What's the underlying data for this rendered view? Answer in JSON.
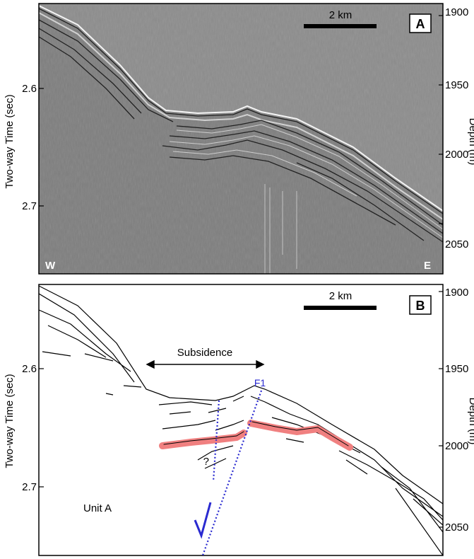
{
  "panel_a": {
    "label": "A",
    "scale_bar_label": "2 km",
    "west_label": "W",
    "east_label": "E",
    "y_left_label": "Two-way Time (sec)",
    "y_left_ticks": [
      "2.6",
      "2.7"
    ],
    "y_right_label": "Depth (m)",
    "y_right_ticks": [
      "1900",
      "1950",
      "2000",
      "2050"
    ]
  },
  "panel_b": {
    "label": "B",
    "scale_bar_label": "2 km",
    "subsidence_label": "Subsidence",
    "fault_label": "F1",
    "question_mark": "?",
    "unit_label": "Unit A",
    "y_left_label": "Two-way Time (sec)",
    "y_left_ticks": [
      "2.6",
      "2.7"
    ],
    "y_right_label": "Depth (m)",
    "y_right_ticks": [
      "1900",
      "1950",
      "2000",
      "2050"
    ]
  },
  "colors": {
    "seismic_background": "#8c8c8c",
    "highlight_reflector": "#f08080",
    "fault_line": "#2a2ad0"
  }
}
